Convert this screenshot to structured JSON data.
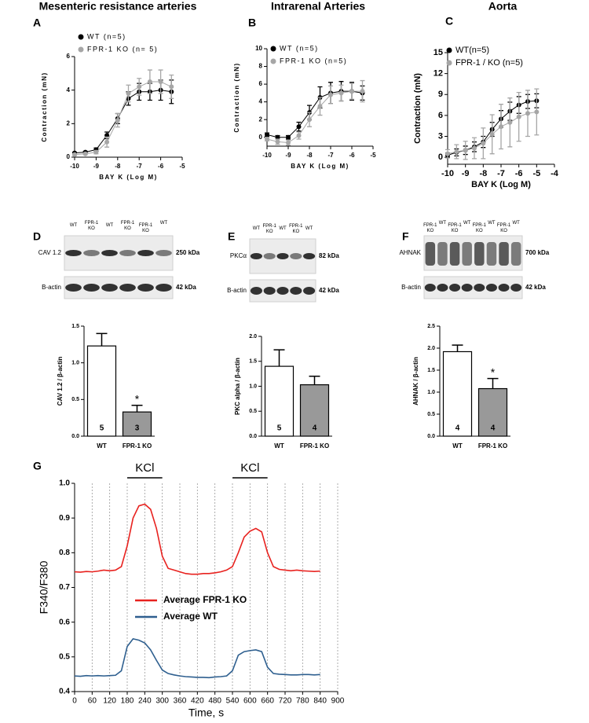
{
  "chart_data": [
    {
      "type": "line",
      "panel": "A",
      "title": "Mesenteric resistance arteries",
      "xlabel": "BAY K (Log M)",
      "ylabel": "Contraction (mN)",
      "x": [
        -10,
        -9.5,
        -9,
        -8.5,
        -8,
        -7.5,
        -7,
        -6.5,
        -6,
        -5.5
      ],
      "series": [
        {
          "name": "WT (n=5)",
          "color": "#000000",
          "values": [
            0.25,
            0.3,
            0.45,
            1.3,
            2.3,
            3.5,
            3.9,
            3.9,
            4.0,
            3.9
          ],
          "errors": [
            0.05,
            0.05,
            0.1,
            0.2,
            0.3,
            0.4,
            0.5,
            0.5,
            0.6,
            0.7
          ]
        },
        {
          "name": "FPR-1 KO (n= 5)",
          "color": "#a6a6a6",
          "values": [
            0.15,
            0.2,
            0.3,
            0.9,
            2.2,
            3.8,
            4.2,
            4.5,
            4.5,
            4.2
          ],
          "errors": [
            0.05,
            0.05,
            0.1,
            0.3,
            0.4,
            0.5,
            0.5,
            0.7,
            0.7,
            0.7
          ]
        }
      ],
      "xlim": [
        -10,
        -5
      ],
      "xticks": [
        -10,
        -9,
        -8,
        -7,
        -6,
        -5
      ],
      "ylim": [
        0,
        6
      ],
      "yticks": [
        0,
        2,
        4,
        6
      ],
      "markers": true,
      "legend": "upper left"
    },
    {
      "type": "line",
      "panel": "B",
      "title": "Intrarenal Arteries",
      "xlabel": "BAY K (Log M)",
      "ylabel": "Contraction (mN)",
      "x": [
        -10,
        -9.5,
        -9,
        -8.5,
        -8,
        -7.5,
        -7,
        -6.5,
        -6,
        -5.5
      ],
      "series": [
        {
          "name": "WT (n=5)",
          "color": "#000000",
          "values": [
            0.3,
            0,
            0,
            1.2,
            2.8,
            4.5,
            5.0,
            5.2,
            5.2,
            5.0
          ],
          "errors": [
            0.2,
            0.2,
            0.2,
            0.5,
            0.8,
            1.2,
            1.2,
            1.1,
            1.0,
            0.8
          ]
        },
        {
          "name": "FPR-1 KO (n=5)",
          "color": "#a6a6a6",
          "values": [
            -0.2,
            -0.5,
            -0.6,
            0.2,
            2.0,
            3.5,
            4.8,
            5.0,
            5.2,
            5.2
          ],
          "errors": [
            0.2,
            0.3,
            0.3,
            0.4,
            0.8,
            1.0,
            1.0,
            0.9,
            0.9,
            1.2
          ]
        }
      ],
      "xlim": [
        -10,
        -5
      ],
      "xticks": [
        -10,
        -9,
        -8,
        -7,
        -6,
        -5
      ],
      "ylim": [
        -1,
        10
      ],
      "yticks": [
        0,
        2,
        4,
        6,
        8,
        10
      ],
      "markers": true,
      "legend": "upper left"
    },
    {
      "type": "line",
      "panel": "C",
      "title": "Aorta",
      "xlabel": "BAY K (Log M)",
      "ylabel": "Contraction (mN)",
      "x": [
        -10,
        -9.5,
        -9,
        -8.5,
        -8,
        -7.5,
        -7,
        -6.5,
        -6,
        -5.5,
        -5
      ],
      "series": [
        {
          "name": "WT(n=5)",
          "color": "#000000",
          "values": [
            0.3,
            0.7,
            1.0,
            1.5,
            2.2,
            4.0,
            5.5,
            6.6,
            7.5,
            8.0,
            8.1
          ],
          "errors": [
            0.3,
            0.5,
            0.6,
            0.7,
            0.8,
            1.0,
            1.2,
            1.3,
            1.2,
            1.0,
            1.0
          ]
        },
        {
          "name": "FPR-1 / KO (n=5)",
          "color": "#a6a6a6",
          "values": [
            0.5,
            0.8,
            1.0,
            1.3,
            2.0,
            3.3,
            4.4,
            5.0,
            5.8,
            6.3,
            6.5
          ],
          "errors": [
            0.6,
            1.0,
            1.3,
            1.5,
            2.2,
            2.8,
            3.2,
            3.5,
            3.5,
            3.3,
            3.3
          ]
        }
      ],
      "xlim": [
        -10,
        -4
      ],
      "xticks": [
        -10,
        -9,
        -8,
        -7,
        -6,
        -5,
        -4
      ],
      "ylim": [
        -1,
        15
      ],
      "yticks": [
        0,
        3,
        6,
        9,
        12,
        15
      ],
      "markers": true,
      "legend": "upper left"
    },
    {
      "type": "bar",
      "ylabel": "CAV 1.2 / β-actin",
      "categories": [
        "WT",
        "FPR-1 KO"
      ],
      "values": [
        1.23,
        0.33
      ],
      "errors": [
        0.17,
        0.09
      ],
      "n": [
        5,
        3
      ],
      "colors": [
        "#ffffff",
        "#999999"
      ],
      "annotations": [
        {
          "text": "*",
          "category": "FPR-1 KO"
        }
      ],
      "ylim": [
        0,
        1.5
      ],
      "yticks": [
        {
          "value": 0,
          "label": "0.0"
        },
        0.5,
        {
          "value": 1,
          "label": "1.0"
        },
        1.5
      ]
    },
    {
      "type": "bar",
      "ylabel": "PKC alpha / β-actin",
      "categories": [
        "WT",
        "FPR-1 KO"
      ],
      "values": [
        1.4,
        1.03
      ],
      "errors": [
        0.33,
        0.17
      ],
      "n": [
        5,
        4
      ],
      "colors": [
        "#ffffff",
        "#999999"
      ],
      "ylim": [
        0,
        2
      ],
      "yticks": [
        {
          "value": 0,
          "label": "0.0"
        },
        0.5,
        {
          "value": 1,
          "label": "1.0"
        },
        1.5,
        {
          "value": 2,
          "label": "2.0"
        }
      ]
    },
    {
      "type": "bar",
      "ylabel": "AHNAK / β-actin",
      "categories": [
        "WT",
        "FPR-1 KO"
      ],
      "values": [
        1.92,
        1.08
      ],
      "errors": [
        0.15,
        0.23
      ],
      "n": [
        4,
        4
      ],
      "colors": [
        "#ffffff",
        "#999999"
      ],
      "annotations": [
        {
          "text": "*",
          "category": "FPR-1 KO"
        }
      ],
      "ylim": [
        0,
        2.5
      ],
      "yticks": [
        {
          "value": 0,
          "label": "0.0"
        },
        0.5,
        {
          "value": 1,
          "label": "1.0"
        },
        1.5,
        {
          "value": 2,
          "label": "2.0"
        },
        2.5
      ]
    },
    {
      "type": "line",
      "panel": "G",
      "xlabel": "Time, s",
      "ylabel": "F340/F380",
      "x": [
        0,
        20,
        40,
        60,
        80,
        100,
        120,
        140,
        160,
        180,
        200,
        220,
        240,
        260,
        280,
        300,
        320,
        340,
        360,
        380,
        400,
        420,
        440,
        460,
        480,
        500,
        520,
        540,
        560,
        580,
        600,
        620,
        640,
        660,
        680,
        700,
        720,
        740,
        760,
        780,
        800,
        820,
        840
      ],
      "series": [
        {
          "name": "Average FPR-1 KO",
          "color": "#e8221f",
          "values": [
            0.745,
            0.744,
            0.746,
            0.745,
            0.747,
            0.75,
            0.748,
            0.75,
            0.76,
            0.82,
            0.9,
            0.935,
            0.94,
            0.925,
            0.87,
            0.79,
            0.755,
            0.75,
            0.745,
            0.74,
            0.738,
            0.738,
            0.74,
            0.74,
            0.742,
            0.745,
            0.75,
            0.76,
            0.8,
            0.845,
            0.862,
            0.87,
            0.86,
            0.8,
            0.76,
            0.752,
            0.75,
            0.748,
            0.75,
            0.748,
            0.747,
            0.746,
            0.747
          ]
        },
        {
          "name": "Average WT",
          "color": "#2e5f8f",
          "values": [
            0.445,
            0.444,
            0.446,
            0.445,
            0.446,
            0.445,
            0.446,
            0.447,
            0.46,
            0.53,
            0.552,
            0.548,
            0.54,
            0.52,
            0.49,
            0.462,
            0.452,
            0.448,
            0.445,
            0.443,
            0.442,
            0.441,
            0.441,
            0.44,
            0.442,
            0.443,
            0.445,
            0.46,
            0.505,
            0.515,
            0.518,
            0.52,
            0.515,
            0.47,
            0.452,
            0.45,
            0.449,
            0.448,
            0.448,
            0.449,
            0.449,
            0.448,
            0.449
          ]
        }
      ],
      "annotations": [
        {
          "text": "KCl",
          "x": [
            180,
            300
          ]
        },
        {
          "text": "KCl",
          "x": [
            540,
            660
          ]
        }
      ],
      "xlim": [
        0,
        900
      ],
      "xticks": [
        0,
        60,
        120,
        180,
        240,
        300,
        360,
        420,
        480,
        540,
        600,
        660,
        720,
        780,
        840,
        900
      ],
      "ylim": [
        0.4,
        1
      ],
      "yticks": [
        0.4,
        0.5,
        0.6,
        0.7,
        0.8,
        0.9,
        {
          "value": 1,
          "label": "1.0"
        }
      ],
      "markers": false,
      "xgrid": true,
      "legend": "center"
    }
  ],
  "blots": [
    {
      "panel": "D",
      "lanes": [
        "WT",
        "FPR-1 KO",
        "WT",
        "FPR-1 KO",
        "FPR-1 KO",
        "WT"
      ],
      "rows": [
        {
          "label": "CAV 1.2",
          "size": "250 kDa"
        },
        {
          "label": "B-actin",
          "size": "42 kDa"
        }
      ]
    },
    {
      "panel": "E",
      "lanes": [
        "WT",
        "FPR-1 KO",
        "WT",
        "FPR-1 KO",
        "WT"
      ],
      "rows": [
        {
          "label": "PKCα",
          "size": "82 kDa"
        },
        {
          "label": "B-actin",
          "size": "42 kDa"
        }
      ]
    },
    {
      "panel": "F",
      "lanes": [
        "FPR-1 KO",
        "WT",
        "FPR-1 KO",
        "WT",
        "FPR-1 KO",
        "WT",
        "FPR-1 KO",
        "WT"
      ],
      "rows": [
        {
          "label": "AHNAK",
          "size": "700 kDa"
        },
        {
          "label": "B-actin",
          "size": "42 kDa"
        }
      ]
    }
  ]
}
